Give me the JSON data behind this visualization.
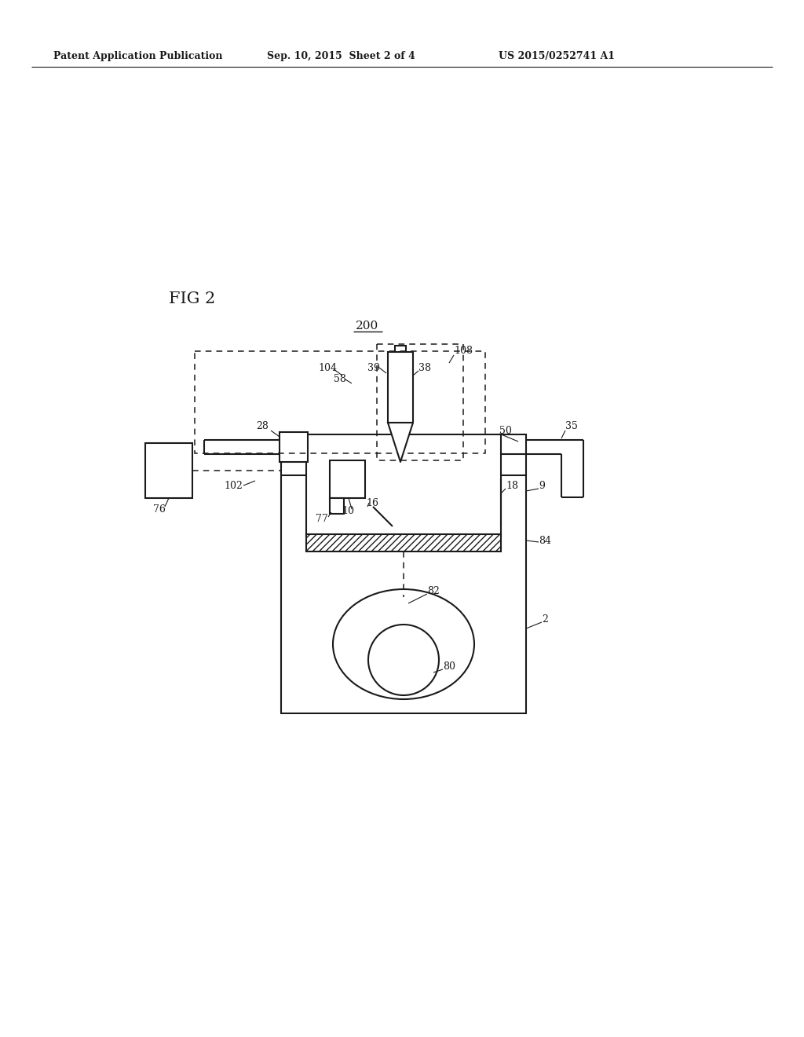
{
  "bg_color": "#ffffff",
  "line_color": "#1a1a1a",
  "header_left": "Patent Application Publication",
  "header_mid": "Sep. 10, 2015  Sheet 2 of 4",
  "header_right": "US 2015/0252741 A1",
  "fig_label": "FIG 2",
  "system_label": "200",
  "figsize": [
    10.24,
    13.2
  ],
  "dpi": 100
}
